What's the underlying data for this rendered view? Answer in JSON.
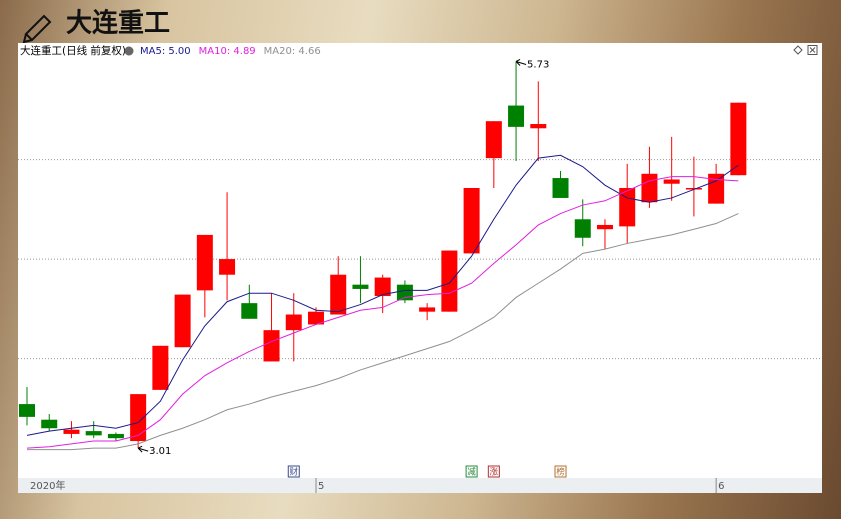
{
  "header": {
    "title": "大连重工"
  },
  "chart_data": {
    "type": "candlestick",
    "title": "大连重工(日线 前复权)",
    "categories": [
      "2020年",
      null,
      null,
      null,
      null,
      null,
      null,
      null,
      null,
      null,
      null,
      null,
      null,
      "5",
      null,
      null,
      null,
      null,
      null,
      null,
      null,
      null,
      null,
      null,
      null,
      null,
      null,
      null,
      null,
      null,
      null,
      "6",
      null
    ],
    "open": [
      3.32,
      3.21,
      3.11,
      3.13,
      3.11,
      3.06,
      3.42,
      3.72,
      4.12,
      4.23,
      4.03,
      3.62,
      3.84,
      3.88,
      3.95,
      4.16,
      4.08,
      4.16,
      3.97,
      3.97,
      4.38,
      5.05,
      5.42,
      5.26,
      4.91,
      4.62,
      4.55,
      4.57,
      4.74,
      4.87,
      4.83,
      4.73,
      4.93
    ],
    "high": [
      3.44,
      3.25,
      3.2,
      3.2,
      3.12,
      3.39,
      3.73,
      4.09,
      4.51,
      4.81,
      4.16,
      4.1,
      4.1,
      4.0,
      4.36,
      4.36,
      4.23,
      4.19,
      4.03,
      4.4,
      4.84,
      5.31,
      5.73,
      5.59,
      4.96,
      4.76,
      4.62,
      5.01,
      5.13,
      5.2,
      5.06,
      5.01,
      5.44
    ],
    "low": [
      3.17,
      3.13,
      3.08,
      3.08,
      3.06,
      3.01,
      3.42,
      3.72,
      3.93,
      4.05,
      3.92,
      3.62,
      3.62,
      3.88,
      3.95,
      4.03,
      3.96,
      4.03,
      3.91,
      3.97,
      4.38,
      4.84,
      5.03,
      5.03,
      4.77,
      4.43,
      4.41,
      4.45,
      4.7,
      4.75,
      4.64,
      4.73,
      4.93
    ],
    "close": [
      3.23,
      3.15,
      3.14,
      3.1,
      3.08,
      3.39,
      3.73,
      4.09,
      4.51,
      4.34,
      3.92,
      3.84,
      3.95,
      3.97,
      4.23,
      4.13,
      4.21,
      4.05,
      4.0,
      4.4,
      4.84,
      5.31,
      5.27,
      5.29,
      4.77,
      4.49,
      4.58,
      4.84,
      4.94,
      4.9,
      4.84,
      4.94,
      5.44
    ],
    "up_color": "#ff0000",
    "down_color": "#008000",
    "series": [
      {
        "name": "MA5: 5.00",
        "color": "#1a1a8c",
        "values": [
          3.1,
          3.13,
          3.15,
          3.17,
          3.15,
          3.19,
          3.34,
          3.63,
          3.87,
          4.04,
          4.1,
          4.1,
          4.05,
          3.98,
          3.97,
          4.02,
          4.09,
          4.12,
          4.12,
          4.17,
          4.36,
          4.62,
          4.86,
          5.05,
          5.07,
          4.99,
          4.86,
          4.77,
          4.74,
          4.77,
          4.83,
          4.89,
          5.0
        ]
      },
      {
        "name": "MA10: 4.89",
        "color": "#e020e0",
        "values": [
          3.01,
          3.02,
          3.04,
          3.06,
          3.06,
          3.1,
          3.21,
          3.39,
          3.52,
          3.61,
          3.69,
          3.76,
          3.82,
          3.88,
          3.93,
          3.98,
          4.0,
          4.07,
          4.09,
          4.1,
          4.17,
          4.31,
          4.44,
          4.58,
          4.66,
          4.72,
          4.75,
          4.82,
          4.89,
          4.92,
          4.92,
          4.9,
          4.89
        ]
      },
      {
        "name": "MA20: 4.66",
        "color": "#909090",
        "values": [
          3.0,
          3.0,
          3.0,
          3.01,
          3.01,
          3.04,
          3.1,
          3.15,
          3.21,
          3.28,
          3.32,
          3.37,
          3.41,
          3.45,
          3.5,
          3.56,
          3.61,
          3.66,
          3.71,
          3.76,
          3.84,
          3.93,
          4.07,
          4.17,
          4.27,
          4.38,
          4.41,
          4.45,
          4.48,
          4.51,
          4.55,
          4.59,
          4.66
        ]
      }
    ],
    "ylim": [
      2.8,
      5.86
    ],
    "grid_lines": [
      3.64,
      4.34,
      5.04
    ],
    "annotations": [
      {
        "text_of": "high",
        "index": 22
      },
      {
        "text_of": "low",
        "index": 5
      }
    ],
    "events": [
      {
        "index": 12,
        "label": "财",
        "color": "#3a4a8a"
      },
      {
        "index": 20,
        "label": "减",
        "color": "#2a8a3a"
      },
      {
        "index": 21,
        "label": "涨",
        "color": "#b03030"
      },
      {
        "index": 24,
        "label": "榜",
        "color": "#b07030"
      }
    ]
  }
}
